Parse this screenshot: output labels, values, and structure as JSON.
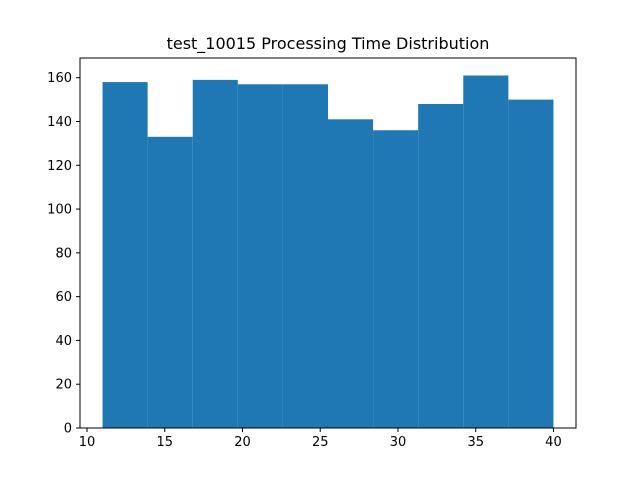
{
  "chart_data": {
    "type": "bar",
    "title": "test_10015 Processing Time Distribution",
    "xlabel": "",
    "ylabel": "",
    "bin_edges": [
      11.0,
      13.9,
      16.8,
      19.7,
      22.6,
      25.5,
      28.4,
      31.3,
      34.2,
      37.1,
      40.0
    ],
    "values": [
      158,
      133,
      159,
      157,
      157,
      141,
      136,
      148,
      161,
      150
    ],
    "xlim": [
      9.55,
      41.45
    ],
    "ylim": [
      0,
      169
    ],
    "x_ticks": [
      10,
      15,
      20,
      25,
      30,
      35,
      40
    ],
    "y_ticks": [
      0,
      20,
      40,
      60,
      80,
      100,
      120,
      140,
      160
    ],
    "bar_color": "#1f77b4",
    "grid": false,
    "legend": "none"
  }
}
